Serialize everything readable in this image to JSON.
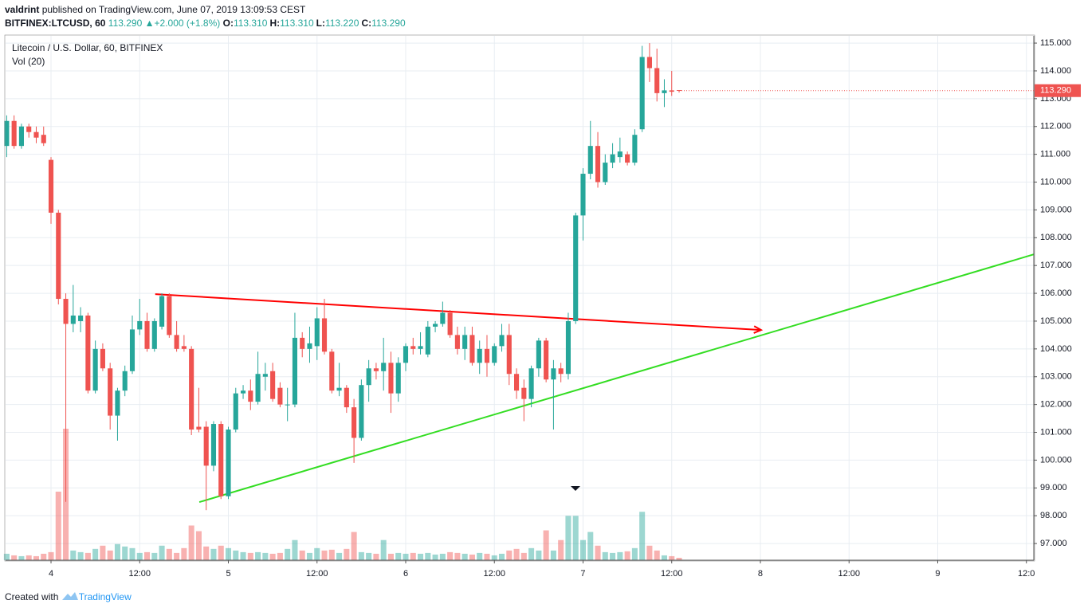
{
  "header": {
    "author": "valdrint",
    "published": "published on TradingView.com, June 07, 2019 13:09:53 CEST",
    "symbol": "BITFINEX:LTCUSD, 60",
    "last": "113.290",
    "change": "+2.000 (+1.8%)",
    "ohlc": [
      {
        "label": "O:",
        "value": "113.310"
      },
      {
        "label": "H:",
        "value": "113.310"
      },
      {
        "label": "L:",
        "value": "113.220"
      },
      {
        "label": "C:",
        "value": "113.290"
      }
    ]
  },
  "footer": {
    "text": "Created with",
    "brand": "TradingView"
  },
  "chart_data": {
    "type": "candlestick",
    "title": "Litecoin / U.S. Dollar, 60, BITFINEX",
    "volume_label": "Vol (20)",
    "up_color": "#26a69a",
    "down_color": "#ef5350",
    "grid": true,
    "x": [
      -6,
      -5,
      -4,
      -3,
      -2,
      -1,
      0,
      1,
      2,
      3,
      4,
      5,
      6,
      7,
      8,
      9,
      10,
      11,
      12,
      13,
      14,
      15,
      16,
      17,
      18,
      19,
      20,
      21,
      22,
      23,
      24,
      25,
      26,
      27,
      28,
      29,
      30,
      31,
      32,
      33,
      34,
      35,
      36,
      37,
      38,
      39,
      40,
      41,
      42,
      43,
      44,
      45,
      46,
      47,
      48,
      49,
      50,
      51,
      52,
      53,
      54,
      55,
      56,
      57,
      58,
      59,
      60,
      61,
      62,
      63,
      64,
      65,
      66,
      67,
      68,
      69,
      70,
      71,
      72,
      73,
      74,
      75,
      76,
      77,
      78,
      79,
      80,
      81,
      82,
      83,
      84,
      85
    ],
    "candles": [
      [
        111.3,
        112.4,
        110.9,
        112.2
      ],
      [
        112.2,
        112.4,
        111.2,
        111.3
      ],
      [
        111.3,
        112.1,
        111.2,
        112.0
      ],
      [
        112.0,
        112.1,
        111.6,
        111.8
      ],
      [
        111.8,
        112.0,
        111.4,
        111.6
      ],
      [
        111.7,
        112.0,
        111.3,
        111.4
      ],
      [
        110.8,
        110.9,
        108.5,
        108.9
      ],
      [
        108.9,
        109.0,
        105.6,
        105.8
      ],
      [
        105.8,
        106.0,
        98.5,
        104.9
      ],
      [
        104.9,
        106.3,
        104.6,
        105.2
      ],
      [
        105.0,
        105.5,
        104.6,
        105.2
      ],
      [
        105.2,
        105.3,
        102.4,
        102.5
      ],
      [
        102.5,
        104.3,
        102.4,
        104.0
      ],
      [
        104.0,
        104.2,
        103.2,
        103.3
      ],
      [
        103.3,
        103.5,
        101.1,
        101.6
      ],
      [
        101.6,
        102.6,
        100.7,
        102.5
      ],
      [
        102.5,
        103.4,
        102.3,
        103.2
      ],
      [
        103.2,
        105.2,
        103.1,
        104.7
      ],
      [
        104.7,
        105.8,
        104.5,
        105.0
      ],
      [
        105.0,
        105.3,
        103.9,
        104.0
      ],
      [
        104.0,
        105.1,
        103.9,
        105.0
      ],
      [
        104.8,
        106.0,
        104.7,
        105.9
      ],
      [
        105.9,
        106.0,
        104.4,
        104.5
      ],
      [
        104.5,
        105.0,
        103.9,
        104.0
      ],
      [
        104.1,
        104.5,
        103.9,
        104.0
      ],
      [
        104.0,
        104.1,
        100.9,
        101.1
      ],
      [
        101.2,
        102.6,
        101.0,
        101.1
      ],
      [
        101.2,
        101.4,
        98.2,
        99.8
      ],
      [
        99.8,
        101.4,
        99.6,
        101.3
      ],
      [
        101.3,
        101.4,
        98.6,
        98.7
      ],
      [
        98.7,
        101.2,
        98.6,
        101.1
      ],
      [
        101.1,
        102.6,
        101.0,
        102.4
      ],
      [
        102.4,
        102.7,
        102.2,
        102.5
      ],
      [
        102.5,
        102.9,
        101.8,
        102.1
      ],
      [
        102.1,
        103.9,
        102.0,
        103.1
      ],
      [
        103.0,
        103.5,
        102.5,
        103.1
      ],
      [
        103.2,
        103.5,
        102.1,
        102.2
      ],
      [
        102.6,
        102.8,
        101.9,
        102.0
      ],
      [
        102.0,
        102.6,
        101.4,
        102.0
      ],
      [
        102.0,
        105.3,
        101.9,
        104.4
      ],
      [
        104.4,
        104.6,
        103.7,
        104.0
      ],
      [
        104.0,
        104.8,
        103.5,
        104.2
      ],
      [
        104.1,
        105.5,
        103.6,
        105.1
      ],
      [
        105.1,
        105.8,
        103.8,
        103.9
      ],
      [
        103.9,
        104.0,
        102.4,
        102.5
      ],
      [
        102.5,
        103.5,
        102.3,
        102.6
      ],
      [
        102.6,
        102.7,
        101.7,
        101.9
      ],
      [
        101.9,
        102.2,
        99.9,
        100.8
      ],
      [
        100.8,
        102.9,
        100.7,
        102.7
      ],
      [
        102.7,
        103.6,
        102.1,
        103.3
      ],
      [
        103.3,
        103.5,
        102.9,
        103.2
      ],
      [
        103.2,
        104.4,
        102.5,
        103.5
      ],
      [
        103.5,
        103.9,
        101.7,
        102.4
      ],
      [
        102.4,
        103.7,
        102.1,
        103.5
      ],
      [
        103.5,
        104.2,
        103.2,
        104.1
      ],
      [
        104.1,
        104.4,
        103.8,
        104.0
      ],
      [
        104.0,
        104.6,
        103.8,
        104.1
      ],
      [
        103.8,
        105.0,
        103.7,
        104.8
      ],
      [
        104.8,
        105.0,
        104.6,
        104.9
      ],
      [
        104.9,
        105.7,
        104.8,
        105.3
      ],
      [
        105.3,
        105.4,
        104.4,
        104.5
      ],
      [
        104.5,
        104.8,
        103.8,
        104.0
      ],
      [
        104.0,
        104.8,
        103.6,
        104.5
      ],
      [
        104.5,
        104.8,
        103.4,
        103.5
      ],
      [
        103.5,
        104.3,
        103.1,
        104.0
      ],
      [
        104.0,
        104.5,
        103.0,
        103.5
      ],
      [
        103.5,
        104.2,
        103.4,
        104.1
      ],
      [
        104.1,
        104.9,
        103.9,
        104.5
      ],
      [
        104.5,
        104.9,
        102.7,
        103.1
      ],
      [
        103.1,
        103.3,
        102.2,
        102.5
      ],
      [
        102.6,
        102.9,
        101.4,
        102.2
      ],
      [
        102.2,
        103.4,
        101.9,
        103.3
      ],
      [
        103.3,
        104.4,
        103.0,
        104.3
      ],
      [
        104.3,
        104.4,
        102.8,
        102.9
      ],
      [
        102.9,
        103.6,
        101.1,
        103.3
      ],
      [
        103.3,
        103.5,
        102.8,
        103.1
      ],
      [
        103.1,
        105.3,
        102.9,
        105.0
      ],
      [
        105.0,
        108.9,
        104.9,
        108.8
      ],
      [
        108.8,
        110.5,
        107.9,
        110.3
      ],
      [
        110.3,
        112.2,
        110.1,
        111.3
      ],
      [
        111.3,
        111.8,
        109.8,
        110.0
      ],
      [
        110.0,
        111.0,
        109.9,
        110.7
      ],
      [
        110.7,
        111.4,
        110.5,
        111.0
      ],
      [
        110.9,
        111.6,
        110.7,
        111.1
      ],
      [
        111.0,
        111.1,
        110.6,
        110.7
      ],
      [
        110.7,
        111.9,
        110.6,
        111.7
      ],
      [
        111.9,
        114.9,
        111.8,
        114.5
      ],
      [
        114.5,
        115.0,
        113.6,
        114.1
      ],
      [
        114.1,
        114.8,
        112.9,
        113.2
      ],
      [
        113.2,
        113.7,
        112.7,
        113.3
      ],
      [
        113.3,
        114.0,
        113.1,
        113.25
      ],
      [
        113.31,
        113.31,
        113.22,
        113.29
      ]
    ],
    "volume": [
      8,
      6,
      5,
      6,
      5,
      8,
      10,
      85,
      163,
      12,
      10,
      9,
      14,
      18,
      12,
      20,
      17,
      15,
      9,
      10,
      9,
      18,
      14,
      9,
      15,
      43,
      36,
      17,
      14,
      18,
      15,
      12,
      10,
      9,
      10,
      9,
      8,
      9,
      14,
      25,
      12,
      9,
      15,
      12,
      13,
      9,
      14,
      35,
      10,
      9,
      8,
      25,
      8,
      9,
      8,
      9,
      8,
      9,
      7,
      8,
      10,
      9,
      8,
      7,
      9,
      8,
      6,
      8,
      12,
      14,
      9,
      15,
      12,
      37,
      12,
      25,
      55,
      55,
      25,
      35,
      18,
      10,
      9,
      10,
      11,
      15,
      60,
      18,
      12,
      6,
      5,
      3
    ],
    "current": {
      "value": 113.29,
      "label": "113.290"
    },
    "drawings": [
      {
        "color": "#ff0000",
        "arrow": true,
        "points": [
          [
            14.1,
            105.97
          ],
          [
            96.1,
            104.68
          ]
        ]
      },
      {
        "color": "#33dd22",
        "arrow": false,
        "points": [
          [
            20.07,
            98.49
          ],
          [
            133,
            107.4
          ]
        ]
      }
    ],
    "xlim": [
      -6.15,
      133
    ],
    "ylim": [
      96.4,
      115.26
    ],
    "yticks": [
      {
        "value": 97,
        "label": "97.000"
      },
      {
        "value": 98,
        "label": "98.000"
      },
      {
        "value": 99,
        "label": "99.000"
      },
      {
        "value": 100,
        "label": "100.000"
      },
      {
        "value": 101,
        "label": "101.000"
      },
      {
        "value": 102,
        "label": "102.000"
      },
      {
        "value": 103,
        "label": "103.000"
      },
      {
        "value": 104,
        "label": "104.000"
      },
      {
        "value": 105,
        "label": "105.000"
      },
      {
        "value": 106,
        "label": "106.000"
      },
      {
        "value": 107,
        "label": "107.000"
      },
      {
        "value": 108,
        "label": "108.000"
      },
      {
        "value": 109,
        "label": "109.000"
      },
      {
        "value": 110,
        "label": "110.000"
      },
      {
        "value": 111,
        "label": "111.000"
      },
      {
        "value": 112,
        "label": "112.000"
      },
      {
        "value": 113,
        "label": "113.000"
      },
      {
        "value": 114,
        "label": "114.000"
      },
      {
        "value": 115,
        "label": "115.000"
      }
    ],
    "xticks": [
      {
        "value": 0,
        "label": "4"
      },
      {
        "value": 12,
        "label": "12:00"
      },
      {
        "value": 24,
        "label": "5"
      },
      {
        "value": 36,
        "label": "12:00"
      },
      {
        "value": 48,
        "label": "6"
      },
      {
        "value": 60,
        "label": "12:00"
      },
      {
        "value": 72,
        "label": "7"
      },
      {
        "value": 84,
        "label": "12:00"
      },
      {
        "value": 96,
        "label": "8"
      },
      {
        "value": 108,
        "label": "12:00"
      },
      {
        "value": 120,
        "label": "9"
      },
      {
        "value": 132,
        "label": "12:0"
      }
    ]
  }
}
